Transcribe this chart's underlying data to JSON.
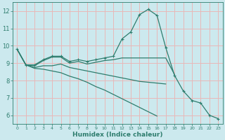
{
  "xlabel": "Humidex (Indice chaleur)",
  "background_color": "#cce9ee",
  "grid_color": "#e8b8b8",
  "line_color": "#2e7d6e",
  "x": [
    0,
    1,
    2,
    3,
    4,
    5,
    6,
    7,
    8,
    9,
    10,
    11,
    12,
    13,
    14,
    15,
    16,
    17,
    18,
    19,
    20,
    21,
    22,
    23
  ],
  "line1": [
    9.8,
    8.9,
    8.9,
    9.2,
    9.4,
    9.4,
    9.1,
    9.2,
    9.1,
    9.2,
    9.3,
    9.4,
    10.4,
    10.8,
    11.8,
    12.1,
    11.75,
    9.9,
    8.3,
    7.4,
    6.85,
    6.7,
    6.0,
    5.8
  ],
  "line2": [
    9.8,
    8.9,
    8.85,
    9.15,
    9.35,
    9.35,
    9.0,
    9.1,
    8.95,
    9.05,
    9.15,
    9.2,
    9.3,
    9.3,
    9.3,
    9.3,
    9.3,
    9.3,
    8.35,
    null,
    null,
    null,
    null,
    null
  ],
  "line3": [
    9.8,
    8.9,
    8.75,
    8.85,
    8.85,
    8.95,
    8.75,
    8.65,
    8.55,
    8.45,
    8.35,
    8.25,
    8.15,
    8.05,
    7.95,
    7.9,
    7.85,
    7.8,
    null,
    null,
    null,
    null,
    null,
    null
  ],
  "line4": [
    9.8,
    8.9,
    8.7,
    8.65,
    8.55,
    8.45,
    8.25,
    8.1,
    7.9,
    7.65,
    7.45,
    7.2,
    6.95,
    6.7,
    6.45,
    6.2,
    5.95,
    null,
    null,
    null,
    null,
    null,
    null,
    null
  ],
  "ylim": [
    5.5,
    12.5
  ],
  "yticks": [
    6,
    7,
    8,
    9,
    10,
    11,
    12
  ],
  "xlim": [
    -0.5,
    23.5
  ]
}
